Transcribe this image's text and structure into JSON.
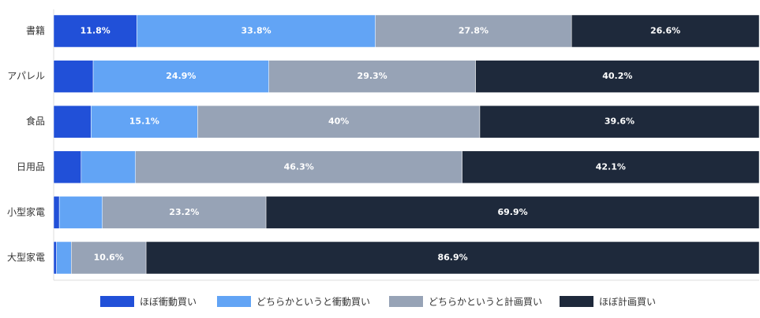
{
  "chart_data": {
    "type": "stacked-bar-horizontal",
    "categories": [
      "書籍",
      "アパレル",
      "食品",
      "日用品",
      "小型家電",
      "大型家電"
    ],
    "xlim": [
      0,
      100
    ],
    "series": [
      {
        "name": "ほぼ衝動買い",
        "color": "#2150d8",
        "values": [
          11.8,
          5.6,
          5.3,
          3.9,
          0.8,
          0.4
        ],
        "value_labels": [
          "11.8%",
          null,
          null,
          null,
          null,
          null
        ]
      },
      {
        "name": "どちらかというと衝動買い",
        "color": "#62a4f5",
        "values": [
          33.8,
          24.9,
          15.1,
          7.7,
          6.1,
          2.1
        ],
        "value_labels": [
          "33.8%",
          "24.9%",
          "15.1%",
          null,
          null,
          null
        ]
      },
      {
        "name": "どちらかというと計画買い",
        "color": "#97a3b6",
        "values": [
          27.8,
          29.3,
          40,
          46.3,
          23.2,
          10.6
        ],
        "value_labels": [
          "27.8%",
          "29.3%",
          "40%",
          "46.3%",
          "23.2%",
          "10.6%"
        ]
      },
      {
        "name": "ほぼ計画買い",
        "color": "#1e293b",
        "values": [
          26.6,
          40.2,
          39.6,
          42.1,
          69.9,
          86.9
        ],
        "value_labels": [
          "26.6%",
          "40.2%",
          "39.6%",
          "42.1%",
          "69.9%",
          "86.9%"
        ]
      }
    ]
  }
}
